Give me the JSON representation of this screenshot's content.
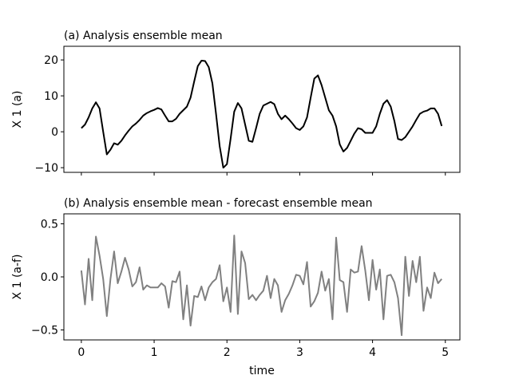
{
  "chart_data": [
    {
      "type": "line",
      "title": "(a) Analysis ensemble mean",
      "ylabel": "X 1 (a)",
      "x": [
        0,
        0.05,
        0.1,
        0.15,
        0.2,
        0.25,
        0.3,
        0.35,
        0.4,
        0.45,
        0.5,
        0.55,
        0.6,
        0.65,
        0.7,
        0.75,
        0.8,
        0.85,
        0.9,
        0.95,
        1,
        1.05,
        1.1,
        1.15,
        1.2,
        1.25,
        1.3,
        1.35,
        1.4,
        1.45,
        1.5,
        1.55,
        1.6,
        1.65,
        1.7,
        1.75,
        1.8,
        1.85,
        1.9,
        1.95,
        2,
        2.05,
        2.1,
        2.15,
        2.2,
        2.25,
        2.3,
        2.35,
        2.4,
        2.45,
        2.5,
        2.55,
        2.6,
        2.65,
        2.7,
        2.75,
        2.8,
        2.85,
        2.9,
        2.95,
        3,
        3.05,
        3.1,
        3.15,
        3.2,
        3.25,
        3.3,
        3.35,
        3.4,
        3.45,
        3.5,
        3.55,
        3.6,
        3.65,
        3.7,
        3.75,
        3.8,
        3.85,
        3.9,
        3.95,
        4,
        4.05,
        4.1,
        4.15,
        4.2,
        4.25,
        4.3,
        4.35,
        4.4,
        4.45,
        4.5,
        4.55,
        4.6,
        4.65,
        4.7,
        4.75,
        4.8,
        4.85,
        4.9,
        4.95
      ],
      "series": [
        {
          "color": "#000000",
          "values": [
            1,
            2,
            4,
            6.5,
            8.2,
            6.5,
            0,
            -6.3,
            -5,
            -3.2,
            -3.6,
            -2.5,
            -1,
            0.3,
            1.5,
            2.3,
            3.3,
            4.5,
            5.2,
            5.7,
            6.1,
            6.6,
            6.2,
            4.5,
            2.9,
            2.9,
            3.6,
            5,
            6,
            7,
            9.5,
            14,
            18.3,
            19.8,
            19.7,
            18,
            13.5,
            5,
            -4,
            -10,
            -9,
            -2,
            5.6,
            8,
            6.5,
            2,
            -2.5,
            -2.8,
            1,
            5,
            7.3,
            7.8,
            8.3,
            7.7,
            5,
            3.5,
            4.5,
            3.5,
            2.3,
            1,
            0.5,
            1.5,
            4,
            9.5,
            14.8,
            15.7,
            13,
            9.5,
            6,
            4.5,
            1.5,
            -3.5,
            -5.5,
            -4.5,
            -2.5,
            -0.5,
            1,
            0.7,
            -0.3,
            -0.3,
            -0.3,
            1.5,
            5,
            7.8,
            8.8,
            7,
            3,
            -2,
            -2.3,
            -1.5,
            0,
            1.5,
            3.3,
            5,
            5.6,
            5.9,
            6.5,
            6.5,
            5,
            1.6
          ]
        }
      ],
      "xlim": [
        -0.24,
        5.2
      ],
      "xticks": [
        0,
        1,
        2,
        3,
        4,
        5
      ],
      "show_xtick_labels": false,
      "ylim": [
        -11.3,
        23.8
      ],
      "yticks": [
        {
          "value": -10,
          "label": "−10"
        },
        0,
        10,
        20
      ]
    },
    {
      "type": "line",
      "title": "(b) Analysis ensemble mean - forecast ensemble mean",
      "ylabel": "X 1 (a-f)",
      "xlabel": "time",
      "x": [
        0,
        0.05,
        0.1,
        0.15,
        0.2,
        0.25,
        0.3,
        0.35,
        0.4,
        0.45,
        0.5,
        0.55,
        0.6,
        0.65,
        0.7,
        0.75,
        0.8,
        0.85,
        0.9,
        0.95,
        1,
        1.05,
        1.1,
        1.15,
        1.2,
        1.25,
        1.3,
        1.35,
        1.4,
        1.45,
        1.5,
        1.55,
        1.6,
        1.65,
        1.7,
        1.75,
        1.8,
        1.85,
        1.9,
        1.95,
        2,
        2.05,
        2.1,
        2.15,
        2.2,
        2.25,
        2.3,
        2.35,
        2.4,
        2.45,
        2.5,
        2.55,
        2.6,
        2.65,
        2.7,
        2.75,
        2.8,
        2.85,
        2.9,
        2.95,
        3,
        3.05,
        3.1,
        3.15,
        3.2,
        3.25,
        3.3,
        3.35,
        3.4,
        3.45,
        3.5,
        3.55,
        3.6,
        3.65,
        3.7,
        3.75,
        3.8,
        3.85,
        3.9,
        3.95,
        4,
        4.05,
        4.1,
        4.15,
        4.2,
        4.25,
        4.3,
        4.35,
        4.4,
        4.45,
        4.5,
        4.55,
        4.6,
        4.65,
        4.7,
        4.75,
        4.8,
        4.85,
        4.9,
        4.95
      ],
      "series": [
        {
          "color": "#808080",
          "values": [
            0.06,
            -0.26,
            0.17,
            -0.22,
            0.38,
            0.2,
            -0.02,
            -0.37,
            -0.02,
            0.24,
            -0.06,
            0.05,
            0.18,
            0.07,
            -0.09,
            -0.05,
            0.09,
            -0.12,
            -0.08,
            -0.1,
            -0.1,
            -0.1,
            -0.06,
            -0.09,
            -0.29,
            -0.04,
            -0.05,
            0.05,
            -0.4,
            -0.08,
            -0.46,
            -0.18,
            -0.19,
            -0.09,
            -0.22,
            -0.1,
            -0.05,
            -0.02,
            0.11,
            -0.23,
            -0.1,
            -0.33,
            0.39,
            -0.35,
            0.24,
            0.13,
            -0.21,
            -0.17,
            -0.22,
            -0.17,
            -0.13,
            0.01,
            -0.2,
            -0.02,
            -0.08,
            -0.33,
            -0.22,
            -0.16,
            -0.08,
            0.02,
            0.01,
            -0.07,
            0.14,
            -0.28,
            -0.23,
            -0.15,
            0.05,
            -0.13,
            -0.02,
            -0.4,
            0.37,
            -0.03,
            -0.05,
            -0.33,
            0.07,
            0.04,
            0.05,
            0.29,
            0.06,
            -0.22,
            0.16,
            -0.12,
            0.07,
            -0.4,
            0.01,
            0.02,
            -0.05,
            -0.2,
            -0.55,
            0.19,
            -0.18,
            0.15,
            -0.05,
            0.19,
            -0.32,
            -0.1,
            -0.2,
            0.04,
            -0.06,
            -0.02
          ]
        }
      ],
      "xlim": [
        -0.24,
        5.2
      ],
      "xticks": [
        0,
        1,
        2,
        3,
        4,
        5
      ],
      "show_xtick_labels": true,
      "ylim": [
        -0.594,
        0.594
      ],
      "yticks": [
        {
          "value": -0.5,
          "label": "−0.5"
        },
        {
          "value": 0,
          "label": "0.0"
        },
        0.5
      ]
    }
  ]
}
